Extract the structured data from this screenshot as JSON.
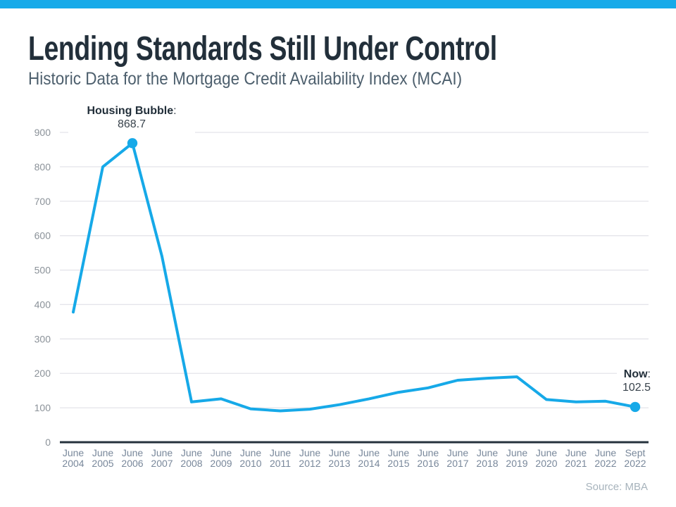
{
  "theme": {
    "accent_blue": "#16aae9",
    "line_blue": "#16a9e8",
    "axis_dark": "#26323d",
    "grid_gray": "#e4e4ea"
  },
  "header": {
    "title": "Lending Standards Still Under Control",
    "subtitle": "Historic Data for the Mortgage Credit Availability Index (MCAI)"
  },
  "annotations": {
    "peak": {
      "label": "Housing Bubble",
      "colon": ":",
      "value": "868.7"
    },
    "now": {
      "label": "Now",
      "colon": ":",
      "value": "102.5"
    }
  },
  "footer": {
    "source_text": "Source: MBA"
  },
  "chart_data": {
    "type": "line",
    "title": "Lending Standards Still Under Control",
    "subtitle": "Historic Data for the Mortgage Credit Availability Index (MCAI)",
    "source": "MBA",
    "categories": [
      "June 2004",
      "June 2005",
      "June 2006",
      "June 2007",
      "June 2008",
      "June 2009",
      "June 2010",
      "June 2011",
      "June 2012",
      "June 2013",
      "June 2014",
      "June 2015",
      "June 2016",
      "June 2017",
      "June 2018",
      "June 2019",
      "June 2020",
      "June 2021",
      "June 2022",
      "Sept 2022"
    ],
    "values": [
      378,
      800,
      868.7,
      540,
      117,
      126,
      97,
      91,
      96,
      109,
      126,
      145,
      158,
      180,
      186,
      190,
      124,
      117,
      119,
      102.5
    ],
    "ylim": [
      0,
      900
    ],
    "yticks": [
      0,
      100,
      200,
      300,
      400,
      500,
      600,
      700,
      800,
      900
    ],
    "grid": true,
    "legend": false,
    "line_color": "#16a9e8",
    "marker_indices": [
      2,
      19
    ],
    "point_annotations": [
      {
        "target_index": 2,
        "label": "Housing Bubble",
        "value": 868.7
      },
      {
        "target_index": 19,
        "label": "Now",
        "value": 102.5
      }
    ]
  }
}
